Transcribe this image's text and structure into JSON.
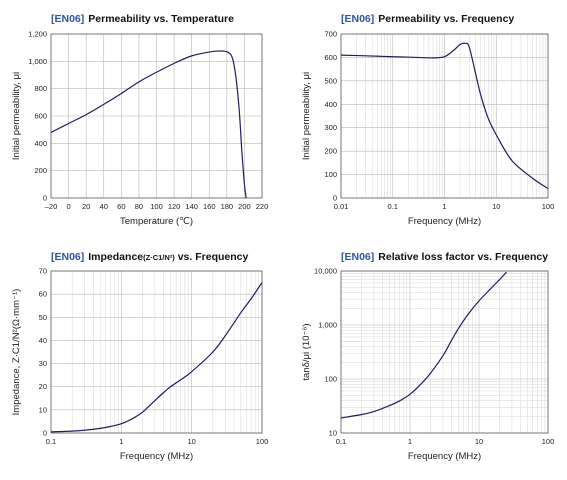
{
  "chart_data": [
    {
      "type": "line",
      "title_tag": "[EN06]",
      "title": "Permeability vs. Temperature",
      "title_suffix": "",
      "xlabel": "Temperature (℃)",
      "ylabel": "Initial permeability, μi",
      "xscale": "linear",
      "yscale": "linear",
      "xlim": [
        -20,
        220
      ],
      "ylim": [
        0,
        1200
      ],
      "xticks": [
        -20,
        0,
        20,
        40,
        60,
        80,
        100,
        120,
        140,
        160,
        180,
        200,
        220
      ],
      "xtick_labels": [
        "–20",
        "0",
        "20",
        "40",
        "60",
        "80",
        "100",
        "120",
        "140",
        "160",
        "180",
        "200",
        "220"
      ],
      "yticks": [
        0,
        200,
        400,
        600,
        800,
        1000,
        1200
      ],
      "ytick_labels": [
        "0",
        "200",
        "400",
        "600",
        "800",
        "1,000",
        "1,200"
      ],
      "grid": true,
      "series": [
        {
          "x": [
            -20,
            0,
            20,
            40,
            60,
            80,
            100,
            120,
            140,
            160,
            170,
            180,
            186,
            190,
            194,
            197,
            200,
            202
          ],
          "y": [
            480,
            545,
            610,
            685,
            765,
            850,
            920,
            985,
            1040,
            1068,
            1075,
            1070,
            1030,
            900,
            650,
            350,
            100,
            0
          ]
        }
      ]
    },
    {
      "type": "line",
      "title_tag": "[EN06]",
      "title": "Permeability vs. Frequency",
      "title_suffix": "",
      "xlabel": "Frequency (MHz)",
      "ylabel": "Initial permeability, μi",
      "xscale": "log",
      "yscale": "linear",
      "xlim": [
        0.01,
        100
      ],
      "ylim": [
        0,
        700
      ],
      "xticks": [
        0.01,
        0.1,
        1,
        10,
        100
      ],
      "xtick_labels": [
        "0.01",
        "0.1",
        "1",
        "10",
        "100"
      ],
      "yticks": [
        0,
        100,
        200,
        300,
        400,
        500,
        600,
        700
      ],
      "ytick_labels": [
        "0",
        "100",
        "200",
        "300",
        "400",
        "500",
        "600",
        "700"
      ],
      "grid": true,
      "series": [
        {
          "x": [
            0.01,
            0.03,
            0.1,
            0.3,
            0.6,
            1,
            1.5,
            2,
            2.5,
            3,
            4,
            5,
            7,
            10,
            20,
            50,
            100
          ],
          "y": [
            610,
            607,
            603,
            600,
            598,
            603,
            630,
            655,
            660,
            645,
            530,
            440,
            340,
            270,
            160,
            85,
            40
          ]
        }
      ]
    },
    {
      "type": "line",
      "title_tag": "[EN06]",
      "title": "Impedance",
      "title_suffix": "(Z·C1/N²)",
      "title_end": " vs. Frequency",
      "xlabel": "Frequency (MHz)",
      "ylabel": "Impedance, Z·C1/N²(Ω·mm⁻¹)",
      "xscale": "log",
      "yscale": "linear",
      "xlim": [
        0.1,
        100
      ],
      "ylim": [
        0,
        70
      ],
      "xticks": [
        0.1,
        1,
        10,
        100
      ],
      "xtick_labels": [
        "0.1",
        "1",
        "10",
        "100"
      ],
      "yticks": [
        0,
        10,
        20,
        30,
        40,
        50,
        60,
        70
      ],
      "ytick_labels": [
        "0",
        "10",
        "20",
        "30",
        "40",
        "50",
        "60",
        "70"
      ],
      "grid": true,
      "series": [
        {
          "x": [
            0.1,
            0.2,
            0.3,
            0.5,
            0.7,
            1,
            1.5,
            2,
            3,
            4,
            5,
            7,
            10,
            20,
            30,
            50,
            70,
            100
          ],
          "y": [
            0.5,
            0.8,
            1.2,
            2,
            2.8,
            4,
            6.5,
            9,
            14,
            17.5,
            20,
            23,
            26.5,
            35,
            42,
            52,
            58,
            65
          ]
        }
      ]
    },
    {
      "type": "line",
      "title_tag": "[EN06]",
      "title": "Relative loss factor vs. Frequency",
      "title_suffix": "",
      "xlabel": "Frequency (MHz)",
      "ylabel": "tanδ/μi (10⁻⁶)",
      "xscale": "log",
      "yscale": "log",
      "xlim": [
        0.1,
        100
      ],
      "ylim": [
        10,
        10000
      ],
      "xticks": [
        0.1,
        1,
        10,
        100
      ],
      "xtick_labels": [
        "0.1",
        "1",
        "10",
        "100"
      ],
      "yticks": [
        10,
        100,
        1000,
        10000
      ],
      "ytick_labels": [
        "10",
        "100",
        "1,000",
        "10,000"
      ],
      "grid": true,
      "series": [
        {
          "x": [
            0.1,
            0.2,
            0.3,
            0.5,
            0.7,
            1,
            1.5,
            2,
            3,
            4,
            5,
            7,
            10,
            15,
            20,
            25
          ],
          "y": [
            19,
            22,
            25,
            32,
            39,
            52,
            85,
            130,
            270,
            520,
            850,
            1600,
            2800,
            4800,
            7000,
            9500
          ]
        }
      ]
    }
  ]
}
